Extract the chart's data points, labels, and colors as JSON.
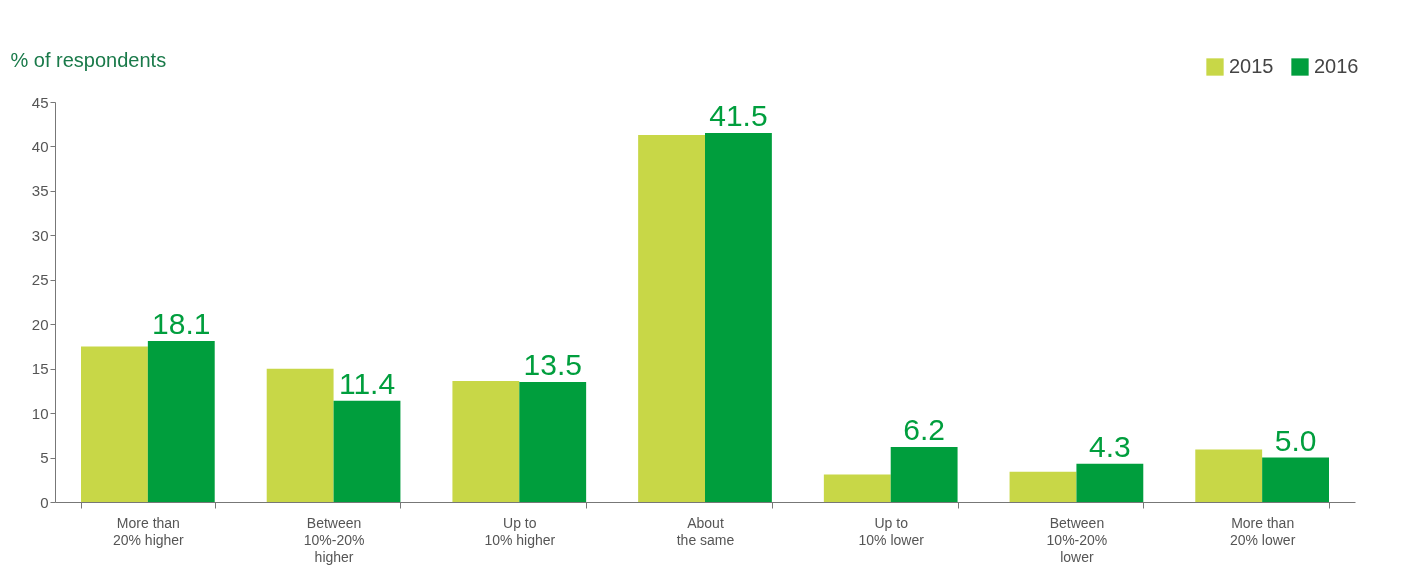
{
  "chart_data": {
    "type": "bar",
    "ylabel": "% of respondents",
    "categories": [
      "More than 20% higher",
      "Between 10%-20% higher",
      "Up to 10% higher",
      "About the same",
      "Up to 10% lower",
      "Between 10%-20% lower",
      "More than 20% lower"
    ],
    "series": [
      {
        "name": "2015",
        "color": "#c8d747",
        "values": [
          17.5,
          15.0,
          13.6,
          41.3,
          3.1,
          3.4,
          5.9
        ]
      },
      {
        "name": "2016",
        "color": "#009e3d",
        "values": [
          18.1,
          11.4,
          13.5,
          41.5,
          6.2,
          4.3,
          5.0
        ],
        "value_labels": [
          "18.1",
          "11.4",
          "13.5",
          "41.5",
          "6.2",
          "4.3",
          "5.0"
        ]
      }
    ],
    "ylim": [
      0,
      45
    ],
    "yticks": [
      0,
      5,
      10,
      15,
      20,
      25,
      30,
      35,
      40,
      45
    ],
    "grid": false,
    "legend": "top right"
  }
}
